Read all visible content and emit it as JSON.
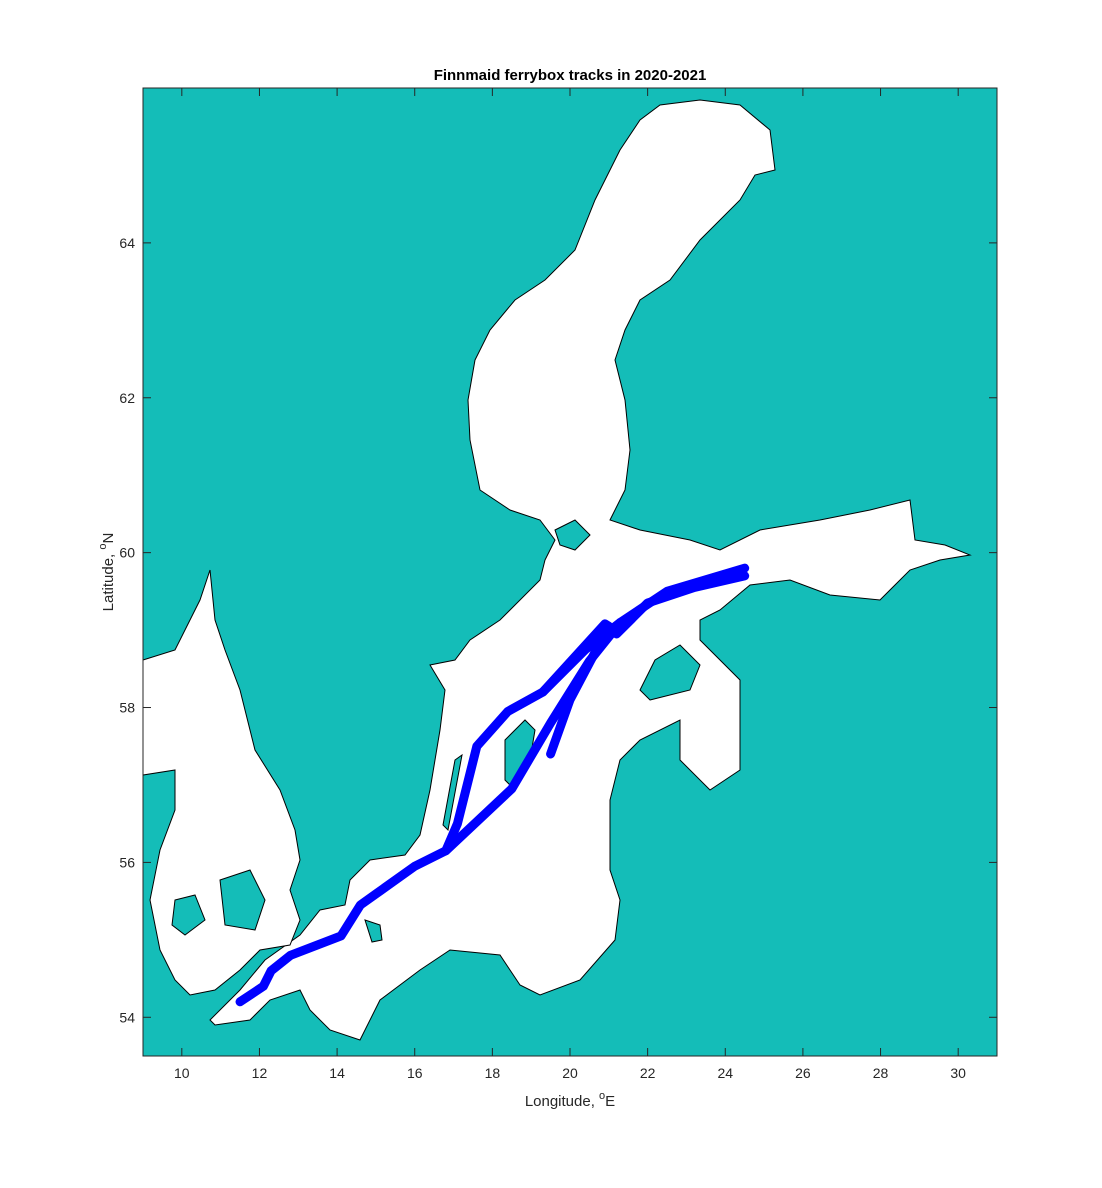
{
  "chart_data": {
    "type": "line",
    "title": "Finnmaid ferrybox tracks in 2020-2021",
    "xlabel": [
      "Longitude, ",
      "o",
      "E"
    ],
    "ylabel": [
      "Latitude, ",
      "o",
      "N"
    ],
    "xlim": [
      9,
      31
    ],
    "ylim": [
      53.5,
      66
    ],
    "xticks": [
      10,
      12,
      14,
      16,
      18,
      20,
      22,
      24,
      26,
      28,
      30
    ],
    "yticks": [
      54,
      56,
      58,
      60,
      62,
      64
    ],
    "land_color": "#14bdb8",
    "series": [
      {
        "color": "#0000ff",
        "x": [
          11.5,
          12.1,
          12.3,
          12.8,
          14.1,
          14.6,
          16.0,
          16.8,
          18.5,
          19.5,
          20.5,
          21.3,
          22.5,
          24.5
        ],
        "values": [
          54.2,
          54.4,
          54.6,
          54.8,
          55.05,
          55.45,
          55.95,
          56.15,
          56.95,
          57.8,
          58.6,
          59.1,
          59.5,
          59.8
        ]
      },
      {
        "color": "#0000ff",
        "x": [
          16.8,
          17.1,
          17.6,
          18.4,
          19.3,
          20.4,
          21.3
        ],
        "values": [
          56.15,
          56.5,
          57.5,
          57.95,
          58.2,
          58.75,
          59.1
        ]
      },
      {
        "color": "#0000ff",
        "x": [
          19.3,
          20.9,
          21.0,
          20.0,
          19.5
        ],
        "values": [
          58.2,
          59.08,
          59.05,
          58.1,
          57.4
        ]
      },
      {
        "color": "#0000ff",
        "x": [
          21.2,
          22.0,
          23.2,
          24.5
        ],
        "values": [
          58.95,
          59.35,
          59.55,
          59.7
        ]
      }
    ]
  }
}
